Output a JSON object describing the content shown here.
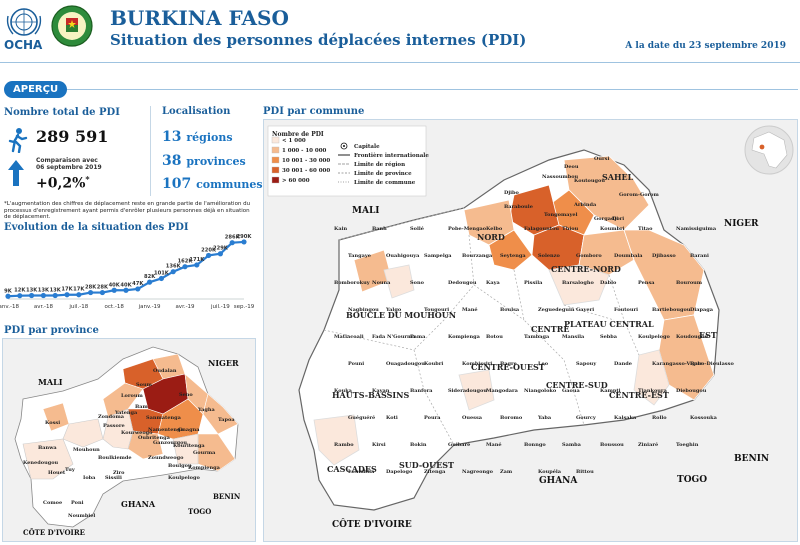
{
  "header": {
    "org": "OCHA",
    "title": "BURKINA FASO",
    "subtitle": "Situation des personnes déplacées internes (PDI)",
    "date": "A la date du 23 septembre 2019"
  },
  "apercu": {
    "label": "APERÇU",
    "total_label": "Nombre total de PDI",
    "total_value": "289 591",
    "compare_text": "Comparaison avec 06 septembre 2019",
    "compare_pct": "+0,2%",
    "compare_mark": "*",
    "loc_title": "Localisation",
    "regions_num": "13",
    "regions_word": "régions",
    "provinces_num": "38",
    "provinces_word": "provinces",
    "communes_num": "107",
    "communes_word": "communes",
    "footnote": "*L'augmentation des chiffres de déplacement reste en grande partie de l'amélioration du processus d'enregistrement ayant permis d'enrôler plusieurs personnes déjà en situation de déplacement."
  },
  "evolution": {
    "title": "Evolution de la situation des PDI",
    "line_color": "#2a7dd1",
    "chart_data": {
      "type": "line",
      "x": [
        "janv.-18",
        "févr.-18",
        "mars-18",
        "avr.-18",
        "mai-18",
        "juin-18",
        "juil.-18",
        "août-18",
        "sept.-18",
        "oct.-18",
        "nov.-18",
        "déc.-18",
        "janv.-19",
        "févr.-19",
        "mars-19",
        "avr.-19",
        "mai-19",
        "juin-19",
        "juil.-19",
        "août-19",
        "sept.-19"
      ],
      "values": [
        9,
        12,
        13,
        13,
        13,
        17,
        17,
        28,
        28,
        40,
        40,
        47,
        82,
        101,
        136,
        162,
        171,
        220,
        229,
        286,
        290
      ],
      "data_labels": [
        "9K",
        "12K",
        "13K",
        "13K",
        "13K",
        "17K",
        "17K",
        "28K",
        "28K",
        "40K",
        "40K",
        "47K",
        "82K",
        "101K",
        "136K",
        "162K",
        "171K",
        "220K",
        "229K",
        "286K",
        "290K"
      ],
      "tick_labels": [
        "janv.-18",
        "avr.-18",
        "juil.-18",
        "oct.-18",
        "janv.-19",
        "avr.-19",
        "juil.-19",
        "sep.-19"
      ]
    }
  },
  "province_map": {
    "title": "PDI par province",
    "countries": [
      "MALI",
      "NIGER",
      "GHANA",
      "TOGO",
      "BENIN",
      "CÔTE D'IVOIRE"
    ],
    "provinces": [
      "Oudalan",
      "Soum",
      "Seno",
      "Loroum",
      "Yatenga",
      "Bam",
      "Sanmatenga",
      "Namentenga",
      "Gnagna",
      "Yagha",
      "Kossi",
      "Zondoma",
      "Passore",
      "Kourweogo",
      "Oubritenga",
      "Ganzourgou",
      "Kouritenga",
      "Tapoa",
      "Gourma",
      "Banwa",
      "Mouhoun",
      "Boulkiemde",
      "Ziro",
      "Zoundweogo",
      "Boulgou",
      "Koulpelogo",
      "Kompienga",
      "Kenedougou",
      "Houet",
      "Tuy",
      "Ioba",
      "Sissili",
      "Comoe",
      "Poni",
      "Noumbiel"
    ]
  },
  "commune_map": {
    "title": "PDI par commune",
    "legend": {
      "title": "Nombre de PDI",
      "classes": [
        {
          "label": "< 1 000",
          "color": "#fbe8dc"
        },
        {
          "label": "1 000 - 10 000",
          "color": "#f5bb8f"
        },
        {
          "label": "10 001 - 30 000",
          "color": "#ef8e4a"
        },
        {
          "label": "30 001 - 60 000",
          "color": "#d8612a"
        },
        {
          "label": "> 60 000",
          "color": "#9b1c14"
        }
      ],
      "symbols": [
        "Capitale",
        "Frontière internationale",
        "Limite de région",
        "Limite de province",
        "Limite de commune"
      ]
    },
    "countries": [
      "MALI",
      "NIGER",
      "GHANA",
      "TOGO",
      "BENIN",
      "CÔTE D'IVOIRE"
    ],
    "regions": [
      "SAHEL",
      "NORD",
      "CENTRE-NORD",
      "BOUCLE DU MOUHOUN",
      "PLATEAU CENTRAL",
      "CENTRE-OUEST",
      "CENTRE",
      "CENTRE-SUD",
      "CENTRE-EST",
      "EST",
      "HAUTS-BASSINS",
      "CASCADES",
      "SUD-OUEST"
    ],
    "communes": [
      "Deou",
      "Oursi",
      "Nassoumbou",
      "Koutougou",
      "Gorom-Gorom",
      "Djibo",
      "Tongomayel",
      "Arbinda",
      "Gorgadji",
      "Baraboule",
      "Dori",
      "Kain",
      "Banh",
      "Sollé",
      "Pobe-Mengao",
      "Kelbo",
      "Falagountou",
      "Thiou",
      "Koumbri",
      "Titao",
      "Namissiguima",
      "Tangaye",
      "Ouahigouya",
      "Sampelga",
      "Bourzanga",
      "Seytenga",
      "Solenzo",
      "Gomboro",
      "Doumbala",
      "Djibasso",
      "Barani",
      "Bomborokuy",
      "Nouna",
      "Sono",
      "Dedougou",
      "Kaya",
      "Pissila",
      "Barsalogho",
      "Dablo",
      "Pensa",
      "Bouroum",
      "Nagbingou",
      "Yalgo",
      "Tougouri",
      "Mané",
      "Boulsa",
      "Zeguedeguin",
      "Gayeri",
      "Foutouri",
      "Bartiebougou",
      "Diapaga",
      "Matiacoali",
      "Fada N'Gourma",
      "Pama",
      "Kompienga",
      "Botou",
      "Tambaga",
      "Mansila",
      "Sebba",
      "Koulpelogo",
      "Koudougou",
      "Pouni",
      "Ouagadougou",
      "Koubri",
      "Kombissiri",
      "Bagre",
      "Leo",
      "Sapouy",
      "Dande",
      "Karangasso-Vigue",
      "Bobo-Dioulasso",
      "Kouka",
      "Kayan",
      "Banfora",
      "Sideradougou",
      "Mangodara",
      "Niangoloko",
      "Gaoua",
      "Kampti",
      "Tiankoura",
      "Diebougou",
      "Guéguéré",
      "Koti",
      "Poura",
      "Ouessa",
      "Boromo",
      "Yaba",
      "Gourcy",
      "Kalsaka",
      "Rollo",
      "Kossouka",
      "Rambo",
      "Kirsi",
      "Bokin",
      "Guibaré",
      "Mané",
      "Bonngo",
      "Samba",
      "Boussou",
      "Ziniaré",
      "Toeghin",
      "Loumbila",
      "Dapelogo",
      "Zitenga",
      "Nagreongo",
      "Zam",
      "Koupéla",
      "Bittou"
    ]
  },
  "colors": {
    "brand": "#1a5e9a",
    "accent": "#1a73c0",
    "map_land": "#ffffff",
    "map_outside": "#f1f1f1",
    "cat1": "#fbe8dc",
    "cat2": "#f5bb8f",
    "cat3": "#ef8e4a",
    "cat4": "#d8612a",
    "cat5": "#9b1c14"
  },
  "icons": [
    "un-emblem-icon",
    "burkina-seal-icon",
    "walking-person-icon",
    "up-arrow-icon",
    "capital-star-icon",
    "africa-locator-icon"
  ]
}
